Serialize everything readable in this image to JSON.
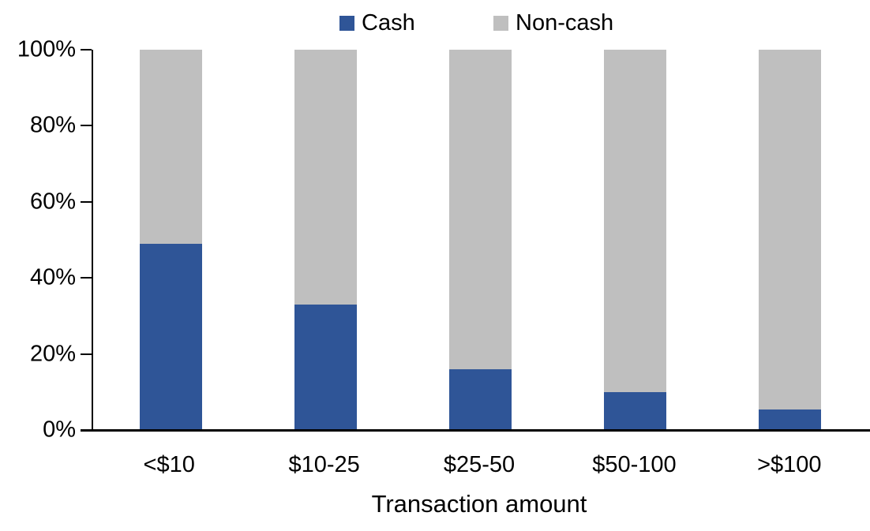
{
  "chart_data": {
    "type": "bar",
    "stacked": true,
    "stacked_total": 100,
    "title": "",
    "xlabel": "Transaction amount",
    "ylabel": "",
    "categories": [
      "<$10",
      "$10-25",
      "$25-50",
      "$50-100",
      ">$100"
    ],
    "series": [
      {
        "name": "Cash",
        "color": "#2F5597",
        "values": [
          49,
          33,
          16,
          10,
          5.5
        ]
      },
      {
        "name": "Non-cash",
        "color": "#BFBFBF",
        "values": [
          51,
          67,
          84,
          90,
          94.5
        ]
      }
    ],
    "y_ticks": [
      "0%",
      "20%",
      "40%",
      "60%",
      "80%",
      "100%"
    ],
    "ylim": [
      0,
      100
    ],
    "legend_position": "top",
    "grid": false,
    "axis_color": "#000000",
    "background_color": "#FFFFFF"
  }
}
